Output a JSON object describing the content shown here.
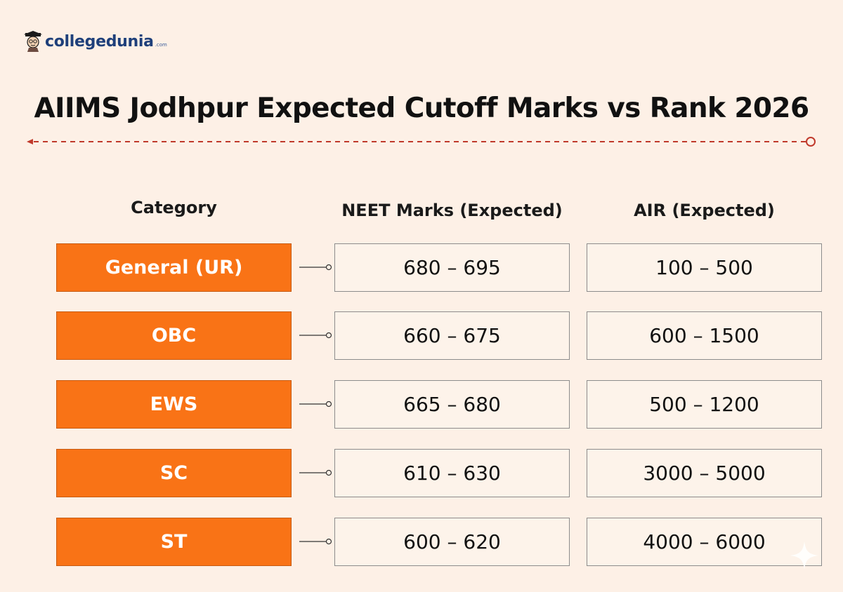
{
  "brand": {
    "name": "collegedunia",
    "suffix": ".com",
    "icon": "student-mascot-icon"
  },
  "title": "AIIMS Jodhpur Expected Cutoff Marks vs Rank 2026",
  "colors": {
    "background": "#fdf0e6",
    "accent": "#f97316",
    "divider": "#c0392b",
    "brand": "#1e3f7a"
  },
  "chart_data": {
    "type": "table",
    "title": "AIIMS Jodhpur Expected Cutoff Marks vs Rank 2026",
    "columns": [
      "Category",
      "NEET Marks (Expected)",
      "AIR (Expected)"
    ],
    "rows": [
      {
        "category": "General (UR)",
        "marks": "680 – 695",
        "air": "100 – 500"
      },
      {
        "category": "OBC",
        "marks": "660 – 675",
        "air": "600 – 1500"
      },
      {
        "category": "EWS",
        "marks": "665 – 680",
        "air": "500 – 1200"
      },
      {
        "category": "SC",
        "marks": "610 – 630",
        "air": "3000 – 5000"
      },
      {
        "category": "ST",
        "marks": "600 – 620",
        "air": "4000 – 6000"
      }
    ]
  }
}
